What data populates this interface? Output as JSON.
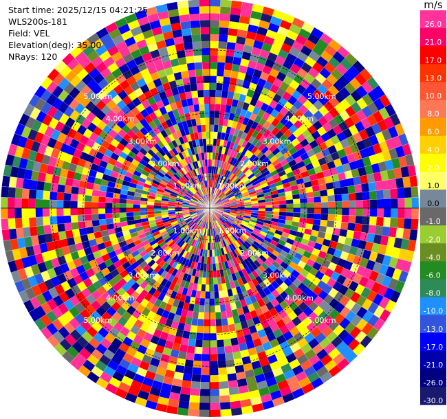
{
  "info": {
    "start_time": "Start time: 2025/12/15 04:21:25",
    "station": "WLS200s-181",
    "field": "Field: VEL",
    "elevation": "Elevation(deg): 35.00",
    "nrays": "NRays: 120"
  },
  "chart_data": {
    "type": "heatmap",
    "projection": "polar PPI",
    "nrays": 120,
    "range_rings": [
      {
        "range_km": 1.0,
        "label": "1.00km"
      },
      {
        "range_km": 2.0,
        "label": "2.00km"
      },
      {
        "range_km": 3.0,
        "label": "3.00km"
      },
      {
        "range_km": 4.0,
        "label": "4.00km"
      },
      {
        "range_km": 5.0,
        "label": "5.00km"
      }
    ],
    "max_range_km": 6.6,
    "colorbar": {
      "unit": "m/s",
      "bins": [
        {
          "label": "26.0",
          "color": "#ff3399"
        },
        {
          "label": "21.0",
          "color": "#ff0066"
        },
        {
          "label": "17.0",
          "color": "#ff0000"
        },
        {
          "label": "13.0",
          "color": "#ff3300"
        },
        {
          "label": "10.0",
          "color": "#ff5533"
        },
        {
          "label": "8.0",
          "color": "#ff7755"
        },
        {
          "label": "6.0",
          "color": "#ff9a00"
        },
        {
          "label": "4.0",
          "color": "#ffd000"
        },
        {
          "label": "2.0",
          "color": "#ffff00"
        },
        {
          "label": "1.0",
          "color": "#ffff66"
        },
        {
          "label": "0.0",
          "color": "#778899"
        },
        {
          "label": "-1.0",
          "color": "#696969"
        },
        {
          "label": "-2.0",
          "color": "#9acd32"
        },
        {
          "label": "-4.0",
          "color": "#6b8e23"
        },
        {
          "label": "-6.0",
          "color": "#228b22"
        },
        {
          "label": "-8.0",
          "color": "#2e8b57"
        },
        {
          "label": "-10.0",
          "color": "#1e90ff"
        },
        {
          "label": "-13.0",
          "color": "#3355dd"
        },
        {
          "label": "-17.0",
          "color": "#0000ff"
        },
        {
          "label": "-21.0",
          "color": "#0000aa"
        },
        {
          "label": "-26.0",
          "color": "#000080"
        },
        {
          "label": "-30.0",
          "color": "#191970"
        }
      ]
    }
  }
}
